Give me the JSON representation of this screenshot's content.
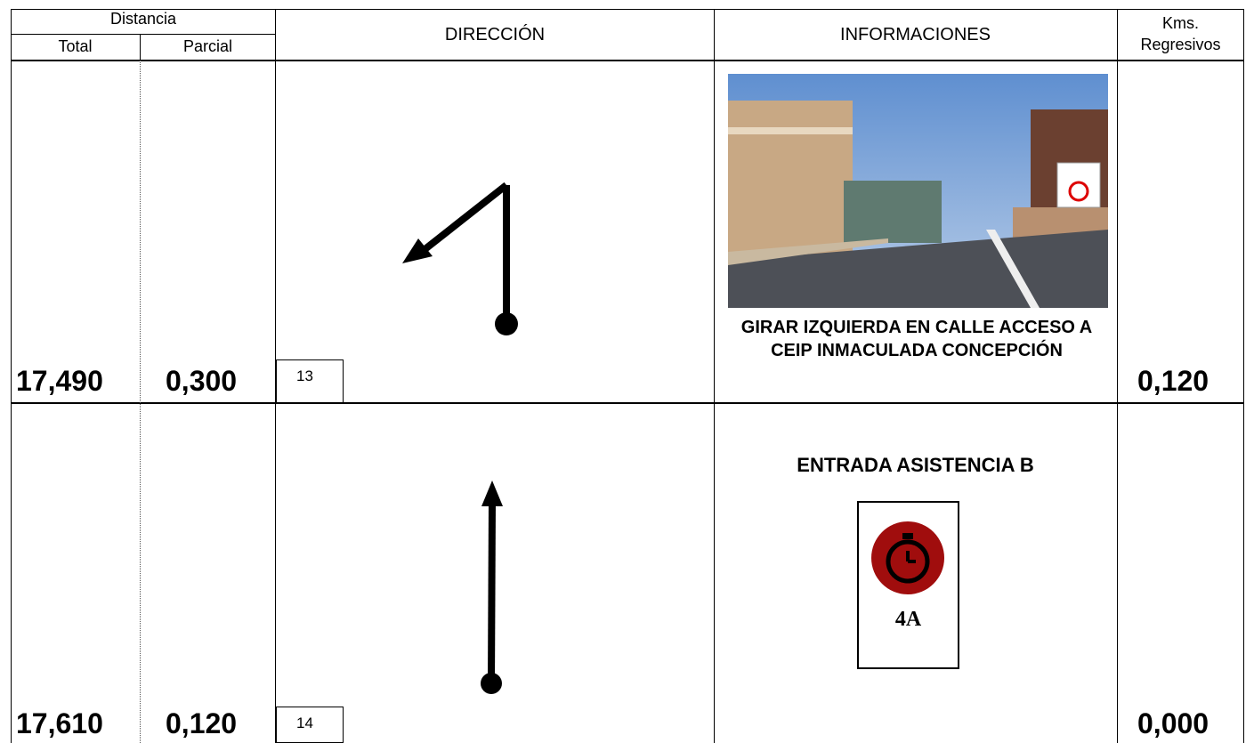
{
  "header": {
    "distancia": "Distancia",
    "total": "Total",
    "parcial": "Parcial",
    "direccion": "DIRECCIÓN",
    "informaciones": "INFORMACIONES",
    "kms": "Kms.",
    "regresivos": "Regresivos"
  },
  "rows": [
    {
      "total": "17,490",
      "parcial": "0,300",
      "number": "13",
      "info": "GIRAR IZQUIERDA EN CALLE ACCESO A CEIP INMACULADA CONCEPCIÓN",
      "regresivos": "0,120"
    },
    {
      "total": "17,610",
      "parcial": "0,120",
      "number": "14",
      "info": "ENTRADA ASISTENCIA B",
      "badge": "4A",
      "regresivos": "0,000"
    }
  ]
}
